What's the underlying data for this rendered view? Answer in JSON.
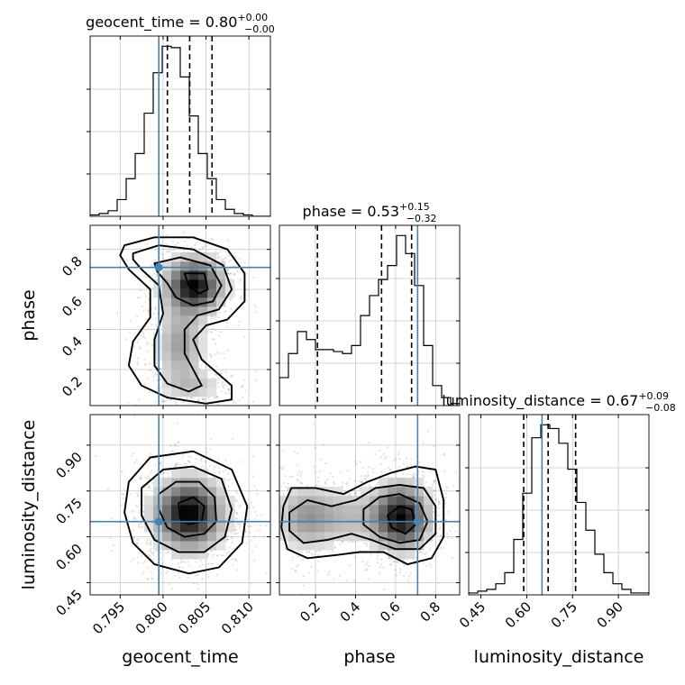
{
  "chart_data": {
    "type": "corner",
    "truth_color": "#4682b4",
    "hist_color": "#000000",
    "grid": true,
    "parameters": [
      {
        "name": "geocent_time",
        "title": {
          "main": "geocent_time = 0.80",
          "sup": "+0.00",
          "sub": "−0.00"
        },
        "ticks": [
          0.795,
          0.8,
          0.805,
          0.81
        ],
        "tick_labels": [
          "0.795",
          "0.800",
          "0.805",
          "0.810"
        ],
        "range": [
          0.7915,
          0.8125
        ],
        "truth": 0.7995,
        "quantiles": [
          0.8005,
          0.8031,
          0.8057
        ],
        "hist": {
          "edges_start": 0.7915,
          "bin_width": 0.00105,
          "counts": [
            1,
            2,
            4,
            12,
            27,
            45,
            74,
            103,
            122,
            121,
            100,
            72,
            45,
            27,
            12,
            5,
            2,
            1,
            0,
            0
          ]
        }
      },
      {
        "name": "phase",
        "title": {
          "main": "phase = 0.53",
          "sup": "+0.15",
          "sub": "−0.32"
        },
        "ticks": [
          0.2,
          0.4,
          0.6,
          0.8
        ],
        "tick_labels": [
          "0.2",
          "0.4",
          "0.6",
          "0.8"
        ],
        "range": [
          0.02,
          0.92
        ],
        "truth": 0.71,
        "quantiles": [
          0.21,
          0.53,
          0.68
        ],
        "hist": {
          "edges_start": 0.02,
          "bin_width": 0.045,
          "counts": [
            14,
            26,
            37,
            33,
            28,
            28,
            27,
            26,
            30,
            45,
            55,
            63,
            70,
            85,
            76,
            60,
            30,
            10,
            4,
            1
          ]
        }
      },
      {
        "name": "luminosity_distance",
        "title": {
          "main": "luminosity_distance = 0.67",
          "sup": "+0.09",
          "sub": "−0.08"
        },
        "ticks": [
          0.45,
          0.6,
          0.75,
          0.9
        ],
        "tick_labels": [
          "0.45",
          "0.60",
          "0.75",
          "0.90"
        ],
        "range": [
          0.41,
          1.0
        ],
        "truth": 0.65,
        "quantiles": [
          0.59,
          0.67,
          0.76
        ],
        "hist": {
          "edges_start": 0.41,
          "bin_width": 0.0295,
          "counts": [
            1,
            2,
            3,
            6,
            12,
            30,
            55,
            85,
            92,
            90,
            82,
            68,
            50,
            35,
            22,
            12,
            6,
            3,
            1,
            1
          ]
        }
      }
    ],
    "pairs": [
      {
        "x": "geocent_time",
        "y": "phase",
        "contours": [
          [
            [
              0.7955,
              0.82
            ],
            [
              0.799,
              0.86
            ],
            [
              0.8035,
              0.86
            ],
            [
              0.8075,
              0.8
            ],
            [
              0.8095,
              0.68
            ],
            [
              0.8095,
              0.54
            ],
            [
              0.8075,
              0.45
            ],
            [
              0.805,
              0.42
            ],
            [
              0.8035,
              0.35
            ],
            [
              0.8045,
              0.25
            ],
            [
              0.808,
              0.12
            ],
            [
              0.808,
              0.05
            ],
            [
              0.805,
              0.03
            ],
            [
              0.8005,
              0.06
            ],
            [
              0.7975,
              0.12
            ],
            [
              0.796,
              0.22
            ],
            [
              0.7965,
              0.34
            ],
            [
              0.7985,
              0.46
            ],
            [
              0.7985,
              0.6
            ],
            [
              0.796,
              0.7
            ],
            [
              0.795,
              0.77
            ]
          ],
          [
            [
              0.7965,
              0.78
            ],
            [
              0.7995,
              0.82
            ],
            [
              0.8035,
              0.8
            ],
            [
              0.807,
              0.72
            ],
            [
              0.808,
              0.6
            ],
            [
              0.8065,
              0.5
            ],
            [
              0.804,
              0.47
            ],
            [
              0.8025,
              0.4
            ],
            [
              0.8025,
              0.28
            ],
            [
              0.8045,
              0.12
            ],
            [
              0.803,
              0.09
            ],
            [
              0.8005,
              0.13
            ],
            [
              0.799,
              0.22
            ],
            [
              0.799,
              0.35
            ],
            [
              0.8,
              0.48
            ],
            [
              0.7995,
              0.62
            ],
            [
              0.7975,
              0.7
            ],
            [
              0.7965,
              0.75
            ]
          ],
          [
            [
              0.799,
              0.73
            ],
            [
              0.802,
              0.76
            ],
            [
              0.8055,
              0.72
            ],
            [
              0.8068,
              0.62
            ],
            [
              0.8058,
              0.54
            ],
            [
              0.8035,
              0.52
            ],
            [
              0.8015,
              0.56
            ],
            [
              0.8005,
              0.63
            ],
            [
              0.7993,
              0.69
            ]
          ],
          [
            [
              0.8025,
              0.68
            ],
            [
              0.8048,
              0.68
            ],
            [
              0.8052,
              0.6
            ],
            [
              0.8042,
              0.58
            ],
            [
              0.803,
              0.62
            ]
          ]
        ]
      },
      {
        "x": "geocent_time",
        "y": "luminosity_distance",
        "contours": [
          [
            [
              0.796,
              0.78
            ],
            [
              0.7985,
              0.86
            ],
            [
              0.8035,
              0.88
            ],
            [
              0.808,
              0.82
            ],
            [
              0.8098,
              0.7
            ],
            [
              0.8092,
              0.58
            ],
            [
              0.8065,
              0.5
            ],
            [
              0.803,
              0.48
            ],
            [
              0.799,
              0.51
            ],
            [
              0.7965,
              0.58
            ],
            [
              0.7955,
              0.68
            ]
          ],
          [
            [
              0.7975,
              0.76
            ],
            [
              0.8,
              0.82
            ],
            [
              0.8035,
              0.83
            ],
            [
              0.8068,
              0.79
            ],
            [
              0.808,
              0.69
            ],
            [
              0.8072,
              0.6
            ],
            [
              0.8048,
              0.55
            ],
            [
              0.8018,
              0.55
            ],
            [
              0.799,
              0.59
            ],
            [
              0.7975,
              0.67
            ]
          ],
          [
            [
              0.7995,
              0.74
            ],
            [
              0.8015,
              0.78
            ],
            [
              0.8042,
              0.78
            ],
            [
              0.806,
              0.73
            ],
            [
              0.8062,
              0.65
            ],
            [
              0.8048,
              0.61
            ],
            [
              0.8025,
              0.6
            ],
            [
              0.8005,
              0.63
            ],
            [
              0.7995,
              0.69
            ]
          ],
          [
            [
              0.8018,
              0.71
            ],
            [
              0.8035,
              0.73
            ],
            [
              0.8048,
              0.7
            ],
            [
              0.8045,
              0.65
            ],
            [
              0.803,
              0.64
            ],
            [
              0.802,
              0.66
            ]
          ]
        ]
      },
      {
        "x": "phase",
        "y": "luminosity_distance",
        "contours": [
          [
            [
              0.04,
              0.7
            ],
            [
              0.08,
              0.76
            ],
            [
              0.2,
              0.76
            ],
            [
              0.34,
              0.74
            ],
            [
              0.46,
              0.78
            ],
            [
              0.58,
              0.81
            ],
            [
              0.7,
              0.83
            ],
            [
              0.8,
              0.82
            ],
            [
              0.84,
              0.72
            ],
            [
              0.84,
              0.6
            ],
            [
              0.78,
              0.53
            ],
            [
              0.66,
              0.51
            ],
            [
              0.54,
              0.55
            ],
            [
              0.42,
              0.55
            ],
            [
              0.3,
              0.54
            ],
            [
              0.16,
              0.53
            ],
            [
              0.06,
              0.56
            ],
            [
              0.03,
              0.63
            ]
          ],
          [
            [
              0.07,
              0.68
            ],
            [
              0.16,
              0.72
            ],
            [
              0.28,
              0.7
            ],
            [
              0.4,
              0.72
            ],
            [
              0.5,
              0.76
            ],
            [
              0.62,
              0.77
            ],
            [
              0.74,
              0.76
            ],
            [
              0.8,
              0.7
            ],
            [
              0.8,
              0.61
            ],
            [
              0.72,
              0.56
            ],
            [
              0.6,
              0.56
            ],
            [
              0.48,
              0.59
            ],
            [
              0.38,
              0.61
            ],
            [
              0.26,
              0.59
            ],
            [
              0.14,
              0.58
            ],
            [
              0.07,
              0.62
            ]
          ],
          [
            [
              0.44,
              0.69
            ],
            [
              0.52,
              0.73
            ],
            [
              0.62,
              0.74
            ],
            [
              0.72,
              0.71
            ],
            [
              0.76,
              0.65
            ],
            [
              0.72,
              0.59
            ],
            [
              0.62,
              0.58
            ],
            [
              0.52,
              0.6
            ],
            [
              0.44,
              0.64
            ]
          ],
          [
            [
              0.56,
              0.67
            ],
            [
              0.62,
              0.7
            ],
            [
              0.68,
              0.69
            ],
            [
              0.7,
              0.64
            ],
            [
              0.65,
              0.61
            ],
            [
              0.58,
              0.63
            ]
          ]
        ]
      }
    ]
  }
}
